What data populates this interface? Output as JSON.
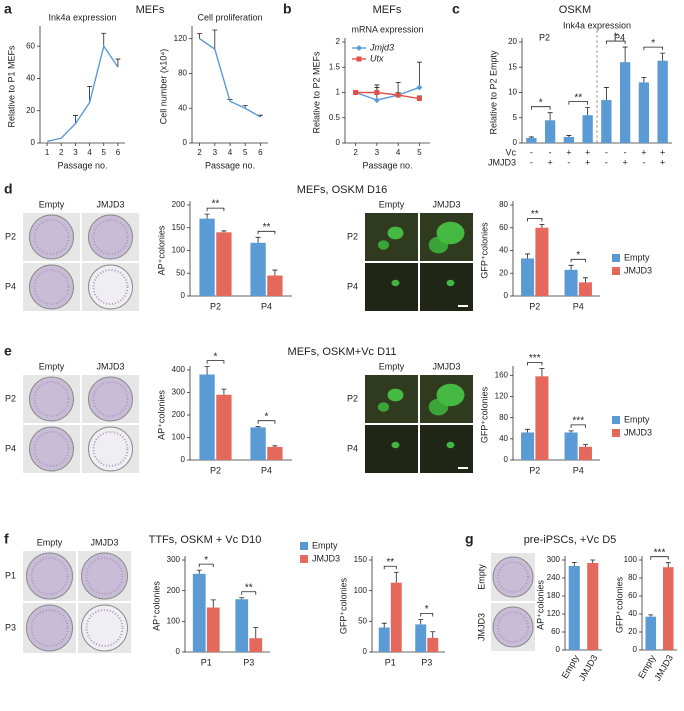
{
  "headings": [
    {
      "letter": "a",
      "title": "MEFs"
    },
    {
      "letter": "b",
      "title": "MEFs"
    },
    {
      "letter": "c",
      "title": "OSKM"
    },
    {
      "letter": "d",
      "title": "MEFs, OSKM D16"
    },
    {
      "letter": "e",
      "title": "MEFs, OSKM+Vc D11"
    },
    {
      "letter": "f",
      "title": "TTFs, OSKM + Vc D10"
    },
    {
      "letter": "g",
      "title": "pre-iPSCs, +Vc D5"
    }
  ],
  "images": [
    {
      "columns": [
        "Empty",
        "JMJD3"
      ],
      "rows": [
        "P2",
        "P4"
      ]
    },
    {
      "columns": [
        "Empty",
        "JMJD3"
      ],
      "rows": [
        "P2",
        "P4"
      ]
    },
    {
      "columns": [
        "Empty",
        "JMJD3"
      ],
      "rows": [
        "P2",
        "P4"
      ]
    },
    {
      "columns": [
        "Empty",
        "JMJD3"
      ],
      "rows": [
        "P2",
        "P4"
      ]
    },
    {
      "columns": [
        "Empty",
        "JMJD3"
      ],
      "rows": [
        "P1",
        "P3"
      ]
    },
    {
      "rows": [
        "Empty",
        "JMJD3"
      ]
    }
  ],
  "chart_data": [
    {
      "type": "line",
      "title": "Ink4a expression",
      "x": [
        1,
        2,
        3,
        4,
        5,
        6
      ],
      "values": [
        1,
        3,
        12,
        25,
        60,
        47
      ],
      "errors": [
        0,
        0,
        5,
        10,
        8,
        5
      ],
      "color": "#5b9bd5",
      "xlim": [
        0.5,
        6.5
      ],
      "xticks": [
        1,
        2,
        3,
        4,
        5,
        6
      ],
      "ylim": [
        0,
        70
      ],
      "yticks": [
        0,
        20,
        40,
        60
      ],
      "x_label": "Passage no.",
      "y_label": "Relative to P1 MEFs"
    },
    {
      "type": "line",
      "title": "Cell proliferation",
      "x": [
        2,
        3,
        4,
        5,
        6
      ],
      "values": [
        120,
        108,
        48,
        40,
        30
      ],
      "errors": [
        6,
        22,
        2,
        3,
        2
      ],
      "color": "#5b9bd5",
      "xlim": [
        1.5,
        6.5
      ],
      "xticks": [
        2,
        3,
        4,
        5,
        6
      ],
      "ylim": [
        0,
        130
      ],
      "yticks": [
        0,
        40,
        80,
        120
      ],
      "x_label": "Passage no.",
      "y_label": "Cell number (x10⁴)"
    },
    {
      "type": "line",
      "title": "mRNA expression",
      "x": [
        2,
        3,
        4,
        5
      ],
      "series": [
        {
          "name": "Jmjd3",
          "color": "#5b9bd5",
          "marker": "diamond",
          "values": [
            1.0,
            0.85,
            0.95,
            1.1
          ],
          "errors": [
            0,
            0.3,
            0.25,
            0.5
          ]
        },
        {
          "name": "Utx",
          "color": "#e0504a",
          "marker": "square",
          "values": [
            1.0,
            1.0,
            0.95,
            0.88
          ],
          "errors": [
            0,
            0.1,
            0.05,
            0.05
          ]
        }
      ],
      "xlim": [
        1.5,
        5.5
      ],
      "xticks": [
        2,
        3,
        4,
        5
      ],
      "ylim": [
        0,
        2
      ],
      "yticks": [
        0,
        0.5,
        1,
        1.5,
        2
      ],
      "x_label": "Passage no.",
      "y_label": "Relative to P2 MEFs",
      "legend": "upper left"
    },
    {
      "type": "bar",
      "title": "Ink4a expression",
      "groups": [
        "P2",
        "P4"
      ],
      "values": [
        1,
        4.5,
        1.2,
        5.5,
        8.5,
        16,
        12,
        16.3
      ],
      "errors": [
        0.2,
        1.5,
        0.3,
        1.5,
        2.5,
        3,
        1,
        1.5
      ],
      "color": "#5b9bd5",
      "rows": [
        {
          "label": "Vc",
          "signs": [
            "-",
            "-",
            "+",
            "+",
            "-",
            "-",
            "+",
            "+"
          ]
        },
        {
          "label": "JMJD3",
          "signs": [
            "-",
            "+",
            "-",
            "+",
            "-",
            "+",
            "-",
            "+"
          ]
        }
      ],
      "significance": [
        "*",
        "**",
        "*",
        "*"
      ],
      "ylim": [
        0,
        20
      ],
      "yticks": [
        0,
        5,
        10,
        15,
        20
      ],
      "y_label": "Relative to P2 Empty"
    },
    {
      "type": "bar",
      "categories": [
        "P2",
        "P4"
      ],
      "series": [
        {
          "name": "Empty",
          "color": "#5b9bd5",
          "values": [
            170,
            117
          ],
          "errors": [
            10,
            12
          ]
        },
        {
          "name": "JMJD3",
          "color": "#e5685c",
          "values": [
            140,
            45
          ],
          "errors": [
            3,
            12
          ]
        }
      ],
      "significance": [
        "**",
        "**"
      ],
      "ylim": [
        0,
        200
      ],
      "yticks": [
        0,
        50,
        100,
        150,
        200
      ],
      "y_label": "AP⁺colonies"
    },
    {
      "type": "bar",
      "categories": [
        "P2",
        "P4"
      ],
      "series": [
        {
          "name": "Empty",
          "color": "#5b9bd5",
          "values": [
            33,
            23
          ],
          "errors": [
            4,
            4
          ]
        },
        {
          "name": "JMJD3",
          "color": "#e5685c",
          "values": [
            60,
            12
          ],
          "errors": [
            3,
            4
          ]
        }
      ],
      "significance": [
        "**",
        "*"
      ],
      "ylim": [
        0,
        80
      ],
      "yticks": [
        0,
        20,
        40,
        60,
        80
      ],
      "y_label": "GFP⁺colonies",
      "legend": "right"
    },
    {
      "type": "bar",
      "categories": [
        "P2",
        "P4"
      ],
      "series": [
        {
          "name": "Empty",
          "color": "#5b9bd5",
          "values": [
            380,
            145
          ],
          "errors": [
            35,
            3
          ]
        },
        {
          "name": "JMJD3",
          "color": "#e5685c",
          "values": [
            290,
            58
          ],
          "errors": [
            25,
            5
          ]
        }
      ],
      "significance": [
        "*",
        "*"
      ],
      "ylim": [
        0,
        400
      ],
      "yticks": [
        0,
        100,
        200,
        300,
        400
      ],
      "y_label": "AP⁺colonies"
    },
    {
      "type": "bar",
      "categories": [
        "P2",
        "P4"
      ],
      "series": [
        {
          "name": "Empty",
          "color": "#5b9bd5",
          "values": [
            52,
            52
          ],
          "errors": [
            6,
            3
          ]
        },
        {
          "name": "JMJD3",
          "color": "#e5685c",
          "values": [
            158,
            25
          ],
          "errors": [
            15,
            4
          ]
        }
      ],
      "significance": [
        "***",
        "***"
      ],
      "ylim": [
        0,
        170
      ],
      "yticks": [
        0,
        40,
        80,
        120,
        160
      ],
      "y_label": "GFP⁺colonies",
      "legend": "right"
    },
    {
      "type": "bar",
      "categories": [
        "P1",
        "P3"
      ],
      "series": [
        {
          "name": "Empty",
          "color": "#5b9bd5",
          "values": [
            255,
            172
          ],
          "errors": [
            12,
            5
          ]
        },
        {
          "name": "JMJD3",
          "color": "#e5685c",
          "values": [
            145,
            45
          ],
          "errors": [
            25,
            35
          ]
        }
      ],
      "significance": [
        "*",
        "**"
      ],
      "ylim": [
        0,
        300
      ],
      "yticks": [
        0,
        100,
        200,
        300
      ],
      "y_label": "AP⁺colonies",
      "legend": "upper right"
    },
    {
      "type": "bar",
      "categories": [
        "P1",
        "P3"
      ],
      "series": [
        {
          "name": "Empty",
          "color": "#5b9bd5",
          "values": [
            40,
            45
          ],
          "errors": [
            7,
            8
          ]
        },
        {
          "name": "JMJD3",
          "color": "#e5685c",
          "values": [
            113,
            23
          ],
          "errors": [
            17,
            10
          ]
        }
      ],
      "significance": [
        "**",
        "*"
      ],
      "ylim": [
        0,
        150
      ],
      "yticks": [
        0,
        50,
        100,
        150
      ],
      "y_label": "GFP⁺colonies"
    },
    {
      "type": "bar",
      "categories": [
        "Empty",
        "JMJD3"
      ],
      "values": [
        280,
        290
      ],
      "errors": [
        12,
        10
      ],
      "colors": [
        "#5b9bd5",
        "#e5685c"
      ],
      "ylim": [
        0,
        300
      ],
      "yticks": [
        0,
        60,
        120,
        180,
        240,
        300
      ],
      "y_label": "AP⁺colonies"
    },
    {
      "type": "bar",
      "categories": [
        "Empty",
        "JMJD3"
      ],
      "values": [
        37,
        92
      ],
      "errors": [
        2,
        5
      ],
      "colors": [
        "#5b9bd5",
        "#e5685c"
      ],
      "significance": "***",
      "ylim": [
        0,
        100
      ],
      "yticks": [
        0,
        20,
        40,
        60,
        80,
        100
      ],
      "y_label": "GFP⁺colonies"
    }
  ]
}
